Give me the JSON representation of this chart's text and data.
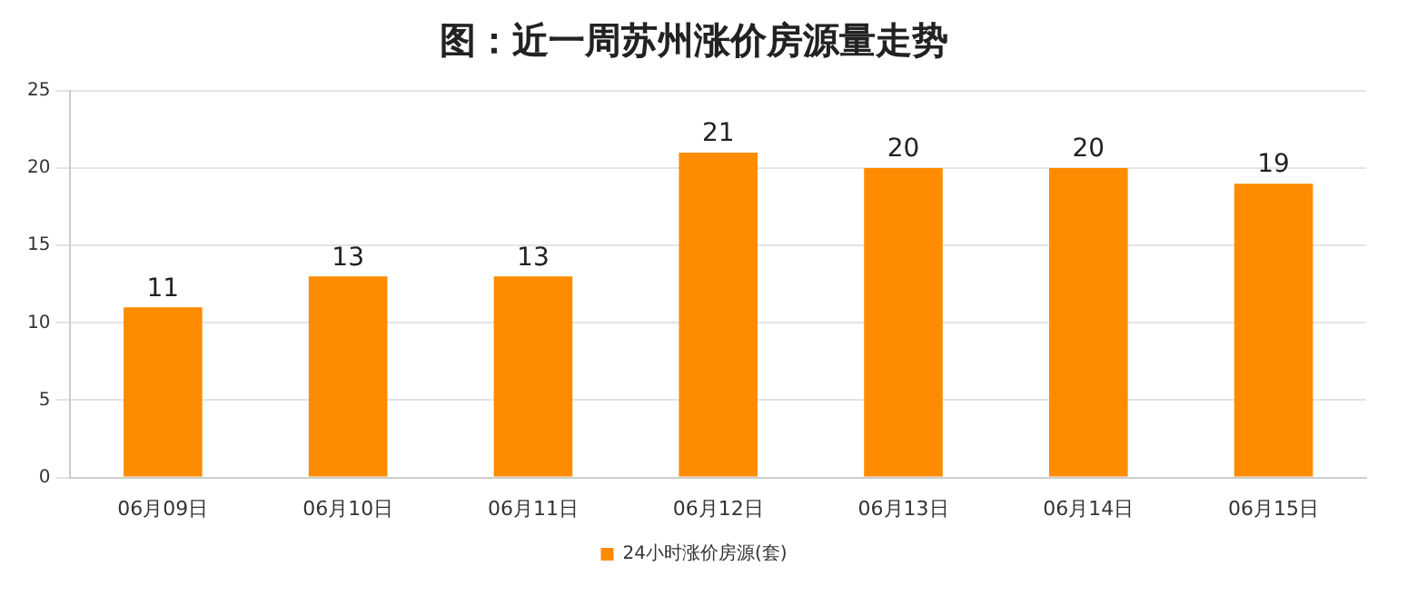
{
  "chart_data": {
    "type": "bar",
    "title": "图：近一周苏州涨价房源量走势",
    "categories": [
      "06月09日",
      "06月10日",
      "06月11日",
      "06月12日",
      "06月13日",
      "06月14日",
      "06月15日"
    ],
    "series": [
      {
        "name": "24小时涨价房源(套)",
        "color": "#ff8c00",
        "values": [
          11,
          13,
          13,
          21,
          20,
          20,
          19
        ]
      }
    ],
    "ylim": [
      0,
      25
    ],
    "yticks": [
      0,
      5,
      10,
      15,
      20,
      25
    ],
    "grid": "y",
    "legend": "bottom",
    "data_labels": true
  }
}
